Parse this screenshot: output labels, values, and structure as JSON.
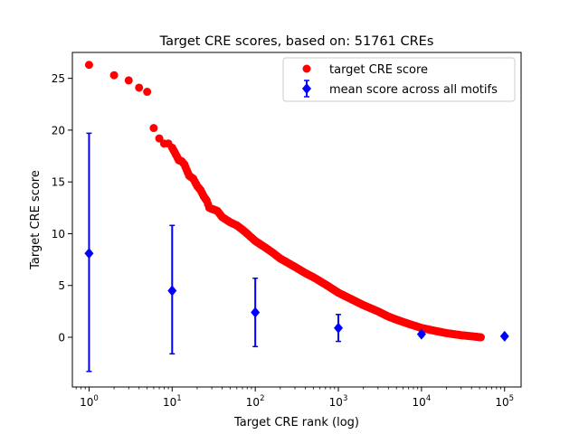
{
  "chart_data": {
    "type": "scatter",
    "title": "Target CRE scores, based on: 51761 CREs",
    "xlabel": "Target CRE rank (log)",
    "ylabel": "Target CRE score",
    "x_scale": "log",
    "xlim": [
      0.63,
      158000
    ],
    "ylim": [
      -4.8,
      27.5
    ],
    "x_ticks": [
      {
        "value": 1,
        "base": "10",
        "exp": "0"
      },
      {
        "value": 10,
        "base": "10",
        "exp": "1"
      },
      {
        "value": 100,
        "base": "10",
        "exp": "2"
      },
      {
        "value": 1000,
        "base": "10",
        "exp": "3"
      },
      {
        "value": 10000,
        "base": "10",
        "exp": "4"
      },
      {
        "value": 100000,
        "base": "10",
        "exp": "5"
      }
    ],
    "y_ticks": [
      0,
      5,
      10,
      15,
      20,
      25
    ],
    "grid": false,
    "legend_position": "top-right",
    "colors": {
      "target": "#ff0000",
      "mean": "#0000ff"
    },
    "series": [
      {
        "name": "target CRE score",
        "marker": "circle",
        "points": [
          [
            1,
            26.3
          ],
          [
            2,
            25.3
          ],
          [
            3,
            24.8
          ],
          [
            4,
            24.1
          ],
          [
            5,
            23.7
          ],
          [
            6,
            20.2
          ],
          [
            7,
            19.2
          ],
          [
            8,
            18.7
          ],
          [
            9,
            18.7
          ],
          [
            10,
            18.3
          ],
          [
            11,
            17.7
          ],
          [
            12,
            17.1
          ],
          [
            13,
            17.0
          ],
          [
            14,
            16.7
          ],
          [
            16,
            15.6
          ],
          [
            18,
            15.3
          ],
          [
            20,
            14.6
          ],
          [
            22,
            14.2
          ],
          [
            24,
            13.6
          ],
          [
            26,
            13.2
          ],
          [
            28,
            12.5
          ],
          [
            30,
            12.4
          ],
          [
            35,
            12.2
          ],
          [
            40,
            11.6
          ],
          [
            50,
            11.1
          ],
          [
            60,
            10.8
          ],
          [
            70,
            10.4
          ],
          [
            80,
            10.0
          ],
          [
            100,
            9.3
          ],
          [
            130,
            8.7
          ],
          [
            160,
            8.2
          ],
          [
            200,
            7.6
          ],
          [
            300,
            6.8
          ],
          [
            400,
            6.2
          ],
          [
            500,
            5.8
          ],
          [
            700,
            5.1
          ],
          [
            1000,
            4.3
          ],
          [
            1500,
            3.6
          ],
          [
            2000,
            3.1
          ],
          [
            3000,
            2.5
          ],
          [
            4000,
            2.0
          ],
          [
            5000,
            1.7
          ],
          [
            7000,
            1.3
          ],
          [
            10000,
            0.9
          ],
          [
            15000,
            0.6
          ],
          [
            20000,
            0.4
          ],
          [
            30000,
            0.2
          ],
          [
            40000,
            0.1
          ],
          [
            51761,
            0.0
          ]
        ]
      },
      {
        "name": "mean score across all motifs",
        "marker": "diamond",
        "points": [
          {
            "x": 1,
            "y": 8.1,
            "ymin": -3.3,
            "ymax": 19.7
          },
          {
            "x": 10,
            "y": 4.5,
            "ymin": -1.6,
            "ymax": 10.8
          },
          {
            "x": 100,
            "y": 2.4,
            "ymin": -0.9,
            "ymax": 5.7
          },
          {
            "x": 1000,
            "y": 0.9,
            "ymin": -0.4,
            "ymax": 2.2
          },
          {
            "x": 10000,
            "y": 0.3,
            "ymin": 0.1,
            "ymax": 0.5
          },
          {
            "x": 100000,
            "y": 0.1,
            "ymin": 0.1,
            "ymax": 0.1
          }
        ]
      }
    ]
  }
}
